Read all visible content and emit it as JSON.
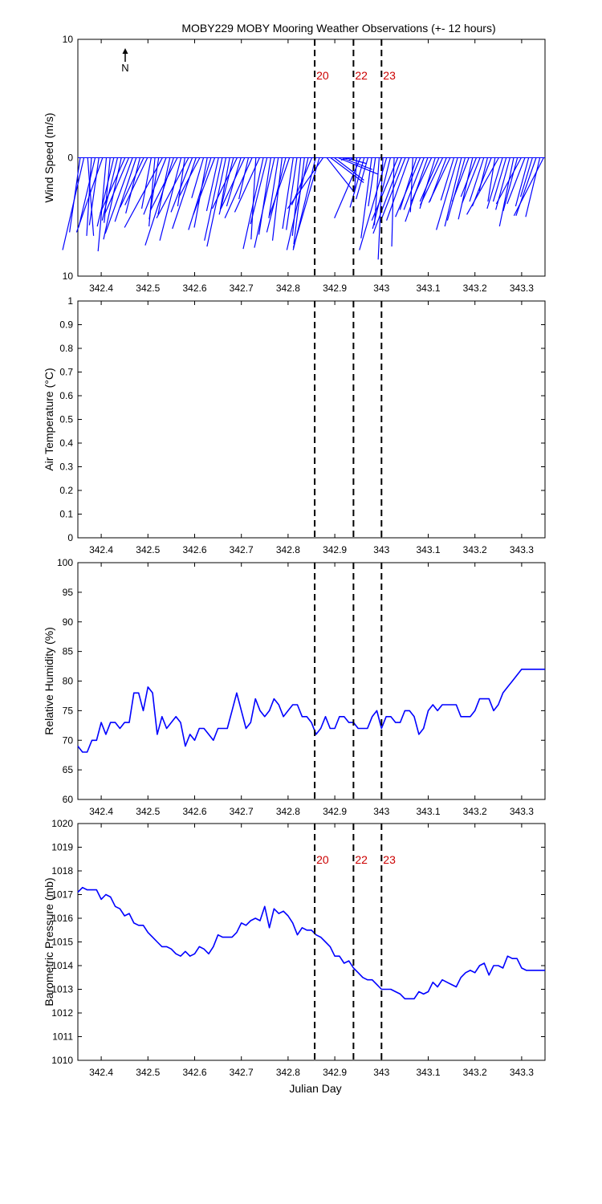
{
  "figure": {
    "title": "MOBY229 MOBY Mooring Weather Observations (+- 12 hours)",
    "north_label": "N",
    "xlabel": "Julian Day",
    "colors": {
      "data": "#0000ff",
      "marker_text": "#cc0000",
      "axes": "#000000"
    }
  },
  "x_ticks": [
    "342.4",
    "342.5",
    "342.6",
    "342.7",
    "342.8",
    "342.9",
    "343",
    "343.1",
    "343.2",
    "343.3"
  ],
  "markers": [
    {
      "label": "20",
      "x": 342.857
    },
    {
      "label": "22",
      "x": 342.94
    },
    {
      "label": "23",
      "x": 343.0
    }
  ],
  "chart_data": [
    {
      "type": "line",
      "variant": "wind-stick",
      "ylabel": "Wind Speed (m/s)",
      "xlim": [
        342.35,
        343.35
      ],
      "ylim": [
        -10,
        10
      ],
      "ytick_labels": [
        "10",
        "0",
        "10"
      ],
      "series": [
        {
          "t": [
            342.355,
            342.363,
            342.371,
            342.379,
            342.387,
            342.395,
            342.403,
            342.411,
            342.419,
            342.427,
            342.435,
            342.443,
            342.451,
            342.459,
            342.467,
            342.475,
            342.483,
            342.491,
            342.499,
            342.507,
            342.515,
            342.523,
            342.531,
            342.539,
            342.547,
            342.555,
            342.563,
            342.571,
            342.579,
            342.587,
            342.595,
            342.603,
            342.611,
            342.619,
            342.627,
            342.635,
            342.643,
            342.651,
            342.659,
            342.667,
            342.675,
            342.683,
            342.691,
            342.699,
            342.707,
            342.715,
            342.723,
            342.731,
            342.739,
            342.747,
            342.755,
            342.763,
            342.771,
            342.779,
            342.787,
            342.795,
            342.803,
            342.811,
            342.819,
            342.827,
            342.835,
            342.843,
            342.851,
            342.859,
            342.867,
            342.875,
            342.883,
            342.891,
            342.899,
            342.907,
            342.915,
            342.923,
            342.931,
            342.939,
            342.947,
            342.955,
            342.963,
            342.971,
            342.979,
            342.987,
            342.995,
            343.003,
            343.011,
            343.019,
            343.027,
            343.035,
            343.043,
            343.051,
            343.059,
            343.067,
            343.075,
            343.083,
            343.091,
            343.099,
            343.107,
            343.115,
            343.123,
            343.131,
            343.139,
            343.147,
            343.155,
            343.163,
            343.171,
            343.179,
            343.187,
            343.195,
            343.203,
            343.211,
            343.219,
            343.227,
            343.235,
            343.243,
            343.251,
            343.259,
            343.267,
            343.275,
            343.283,
            343.291,
            343.299,
            343.307,
            343.315,
            343.323,
            343.331,
            343.339,
            343.347
          ],
          "u": [
            -0.9,
            -1.8,
            0.5,
            -0.4,
            -1.4,
            -0.8,
            -2.2,
            -0.7,
            -0.5,
            -1.4,
            -1.3,
            -1.5,
            -2.1,
            -2.0,
            -2.3,
            -1.8,
            -1.2,
            -2.0,
            -1.9,
            -0.8,
            -0.5,
            -0.8,
            -3.2,
            -1.9,
            -1.0,
            -2.4,
            -2.3,
            -1.8,
            -0.6,
            -2.7,
            -1.8,
            -2.0,
            -1.8,
            -1.0,
            -1.1,
            -1.9,
            -1.8,
            -1.0,
            -1.5,
            -1.6,
            -0.8,
            -1.2,
            -2.1,
            -1.2,
            -2.0,
            -0.8,
            -2.3,
            -0.4,
            -2.1,
            -1.7,
            -1.4,
            -1.0,
            -1.7,
            -0.8,
            -0.8,
            -1.6,
            -1.7,
            -0.9,
            -0.9,
            -0.7,
            -0.9,
            -1.8,
            -1.7,
            -1.9,
            -2.2,
            -3.0,
            2.3,
            2.8,
            2.5,
            3.4,
            2.6,
            1.8,
            -0.7,
            -0.3,
            -0.2,
            -2.2,
            -1.2,
            -1.0,
            -0.9,
            -0.6,
            -0.4,
            -0.4,
            -2.3,
            -1.5,
            -0.2,
            -2.2,
            -2.4,
            -2.1,
            -1.9,
            -0.2,
            -1.4,
            -2.1,
            -1.7,
            -1.9,
            -1.7,
            -1.3,
            -1.6,
            -1.9,
            -1.4,
            -1.8,
            -1.1,
            -1.8,
            -1.4,
            -1.5,
            -1.4,
            -1.2,
            -1.3,
            -1.5,
            -1.2,
            -0.7,
            -1.6,
            -0.6,
            -2.7,
            -1.3,
            -1.1,
            -1.2,
            -1.2,
            -1.2,
            -2.1,
            -1.5,
            -1.1,
            -1.0,
            -1.7,
            -1.2,
            -2.5
          ],
          "v": [
            -6.3,
            -7.8,
            -6.6,
            -6.6,
            -5.9,
            -5.7,
            -6.3,
            -7.9,
            -5.5,
            -5.8,
            -5.3,
            -6.9,
            -4.7,
            -4.7,
            -6.4,
            -5.4,
            -4.7,
            -4.2,
            -4.0,
            -4.3,
            -5.8,
            -5.2,
            -5.9,
            -4.8,
            -4.8,
            -7.4,
            -4.5,
            -7.0,
            -4.1,
            -5.1,
            -4.6,
            -6.0,
            -3.4,
            -3.4,
            -5.9,
            -6.1,
            -4.8,
            -4.5,
            -7.0,
            -7.5,
            -4.4,
            -4.8,
            -4.3,
            -4.1,
            -4.3,
            -3.5,
            -5.1,
            -6.9,
            -4.6,
            -7.7,
            -5.6,
            -6.5,
            -7.6,
            -5.1,
            -7.0,
            -6.3,
            -4.9,
            -6.0,
            -6.1,
            -6.6,
            -7.3,
            -7.8,
            -4.0,
            -7.8,
            -7.6,
            -4.3,
            -2.9,
            -2.1,
            -1.9,
            -1.4,
            -1.0,
            -0.5,
            -0.2,
            -0.2,
            -3.0,
            -5.1,
            -4.2,
            -3.5,
            -6.8,
            -4.1,
            -5.7,
            -8.6,
            -7.8,
            -6.0,
            -7.5,
            -5.3,
            -6.4,
            -5.4,
            -5.3,
            -4.6,
            -4.4,
            -5.0,
            -4.4,
            -5.4,
            -3.7,
            -4.3,
            -3.7,
            -4.0,
            -3.7,
            -3.8,
            -3.6,
            -6.1,
            -5.8,
            -5.3,
            -3.7,
            -5.2,
            -3.3,
            -3.8,
            -3.7,
            -2.8,
            -4.1,
            -3.7,
            -4.8,
            -4.3,
            -3.7,
            -4.4,
            -5.8,
            -4.5,
            -3.9,
            -3.9,
            -4.1,
            -3.3,
            -4.9,
            -5.0,
            -4.9
          ]
        }
      ]
    },
    {
      "type": "line",
      "ylabel": "Air Temperature (°C)",
      "xlim": [
        342.35,
        343.35
      ],
      "ylim": [
        0,
        1
      ],
      "ytick_labels": [
        "1",
        "0.9",
        "0.8",
        "0.7",
        "0.6",
        "0.5",
        "0.4",
        "0.3",
        "0.2",
        "0.1",
        "0"
      ],
      "series": []
    },
    {
      "type": "line",
      "ylabel": "Relative Humidity (%)",
      "xlim": [
        342.35,
        343.35
      ],
      "ylim": [
        60,
        100
      ],
      "ytick_labels": [
        "100",
        "95",
        "90",
        "85",
        "80",
        "75",
        "70",
        "65",
        "60"
      ],
      "series": [
        {
          "x": [
            342.35,
            342.36,
            342.37,
            342.38,
            342.39,
            342.4,
            342.41,
            342.42,
            342.43,
            342.44,
            342.45,
            342.46,
            342.47,
            342.48,
            342.49,
            342.5,
            342.51,
            342.52,
            342.53,
            342.54,
            342.55,
            342.56,
            342.57,
            342.58,
            342.59,
            342.6,
            342.61,
            342.62,
            342.63,
            342.64,
            342.65,
            342.66,
            342.67,
            342.68,
            342.69,
            342.7,
            342.71,
            342.72,
            342.73,
            342.74,
            342.75,
            342.76,
            342.77,
            342.78,
            342.79,
            342.8,
            342.81,
            342.82,
            342.83,
            342.84,
            342.85,
            342.86,
            342.87,
            342.88,
            342.89,
            342.9,
            342.91,
            342.92,
            342.93,
            342.94,
            342.95,
            342.96,
            342.97,
            342.98,
            342.99,
            343.0,
            343.01,
            343.02,
            343.03,
            343.04,
            343.05,
            343.06,
            343.07,
            343.08,
            343.09,
            343.1,
            343.11,
            343.12,
            343.13,
            343.14,
            343.15,
            343.16,
            343.17,
            343.18,
            343.19,
            343.2,
            343.21,
            343.22,
            343.23,
            343.24,
            343.25,
            343.26,
            343.27,
            343.28,
            343.29,
            343.3,
            343.31,
            343.32,
            343.33,
            343.34,
            343.35
          ],
          "y": [
            69,
            68,
            68,
            70,
            70,
            73,
            71,
            73,
            73,
            72,
            73,
            73,
            78,
            78,
            75,
            79,
            78,
            71,
            74,
            72,
            73,
            74,
            73,
            69,
            71,
            70,
            72,
            72,
            71,
            70,
            72,
            72,
            72,
            75,
            78,
            75,
            72,
            73,
            77,
            75,
            74,
            75,
            77,
            76,
            74,
            75,
            76,
            76,
            74,
            74,
            73,
            71,
            72,
            74,
            72,
            72,
            74,
            74,
            73,
            73,
            72,
            72,
            72,
            74,
            75,
            72,
            74,
            74,
            73,
            73,
            75,
            75,
            74,
            71,
            72,
            75,
            76,
            75,
            76,
            76,
            76,
            76,
            74,
            74,
            74,
            75,
            77,
            77,
            77,
            75,
            76,
            78,
            79,
            80,
            81,
            82,
            82,
            82,
            82,
            82,
            82
          ]
        }
      ]
    },
    {
      "type": "line",
      "ylabel": "Barometric Pressure (mb)",
      "xlim": [
        342.35,
        343.35
      ],
      "ylim": [
        1010,
        1020
      ],
      "ytick_labels": [
        "1020",
        "1019",
        "1018",
        "1017",
        "1016",
        "1015",
        "1014",
        "1013",
        "1012",
        "1011",
        "1010"
      ],
      "series": [
        {
          "x": [
            342.35,
            342.36,
            342.37,
            342.38,
            342.39,
            342.4,
            342.41,
            342.42,
            342.43,
            342.44,
            342.45,
            342.46,
            342.47,
            342.48,
            342.49,
            342.5,
            342.51,
            342.52,
            342.53,
            342.54,
            342.55,
            342.56,
            342.57,
            342.58,
            342.59,
            342.6,
            342.61,
            342.62,
            342.63,
            342.64,
            342.65,
            342.66,
            342.67,
            342.68,
            342.69,
            342.7,
            342.71,
            342.72,
            342.73,
            342.74,
            342.75,
            342.76,
            342.77,
            342.78,
            342.79,
            342.8,
            342.81,
            342.82,
            342.83,
            342.84,
            342.85,
            342.86,
            342.87,
            342.88,
            342.89,
            342.9,
            342.91,
            342.92,
            342.93,
            342.94,
            342.95,
            342.96,
            342.97,
            342.98,
            342.99,
            343.0,
            343.01,
            343.02,
            343.03,
            343.04,
            343.05,
            343.06,
            343.07,
            343.08,
            343.09,
            343.1,
            343.11,
            343.12,
            343.13,
            343.14,
            343.15,
            343.16,
            343.17,
            343.18,
            343.19,
            343.2,
            343.21,
            343.22,
            343.23,
            343.24,
            343.25,
            343.26,
            343.27,
            343.28,
            343.29,
            343.3,
            343.31,
            343.32,
            343.33,
            343.34,
            343.35
          ],
          "y": [
            1017.1,
            1017.3,
            1017.2,
            1017.2,
            1017.2,
            1016.8,
            1017.0,
            1016.9,
            1016.5,
            1016.4,
            1016.1,
            1016.2,
            1015.8,
            1015.7,
            1015.7,
            1015.4,
            1015.2,
            1015.0,
            1014.8,
            1014.8,
            1014.7,
            1014.5,
            1014.4,
            1014.6,
            1014.4,
            1014.5,
            1014.8,
            1014.7,
            1014.5,
            1014.8,
            1015.3,
            1015.2,
            1015.2,
            1015.2,
            1015.4,
            1015.8,
            1015.7,
            1015.9,
            1016.0,
            1015.9,
            1016.5,
            1015.6,
            1016.4,
            1016.2,
            1016.3,
            1016.1,
            1015.8,
            1015.3,
            1015.6,
            1015.5,
            1015.5,
            1015.3,
            1015.2,
            1015.0,
            1014.8,
            1014.4,
            1014.4,
            1014.1,
            1014.2,
            1013.9,
            1013.7,
            1013.5,
            1013.4,
            1013.4,
            1013.2,
            1013.0,
            1013.0,
            1013.0,
            1012.9,
            1012.8,
            1012.6,
            1012.6,
            1012.6,
            1012.9,
            1012.8,
            1012.9,
            1013.3,
            1013.1,
            1013.4,
            1013.3,
            1013.2,
            1013.1,
            1013.5,
            1013.7,
            1013.8,
            1013.7,
            1014.0,
            1014.1,
            1013.6,
            1014.0,
            1014.0,
            1013.9,
            1014.4,
            1014.3,
            1014.3,
            1013.9,
            1013.8,
            1013.8,
            1013.8,
            1013.8,
            1013.8
          ]
        }
      ]
    }
  ]
}
